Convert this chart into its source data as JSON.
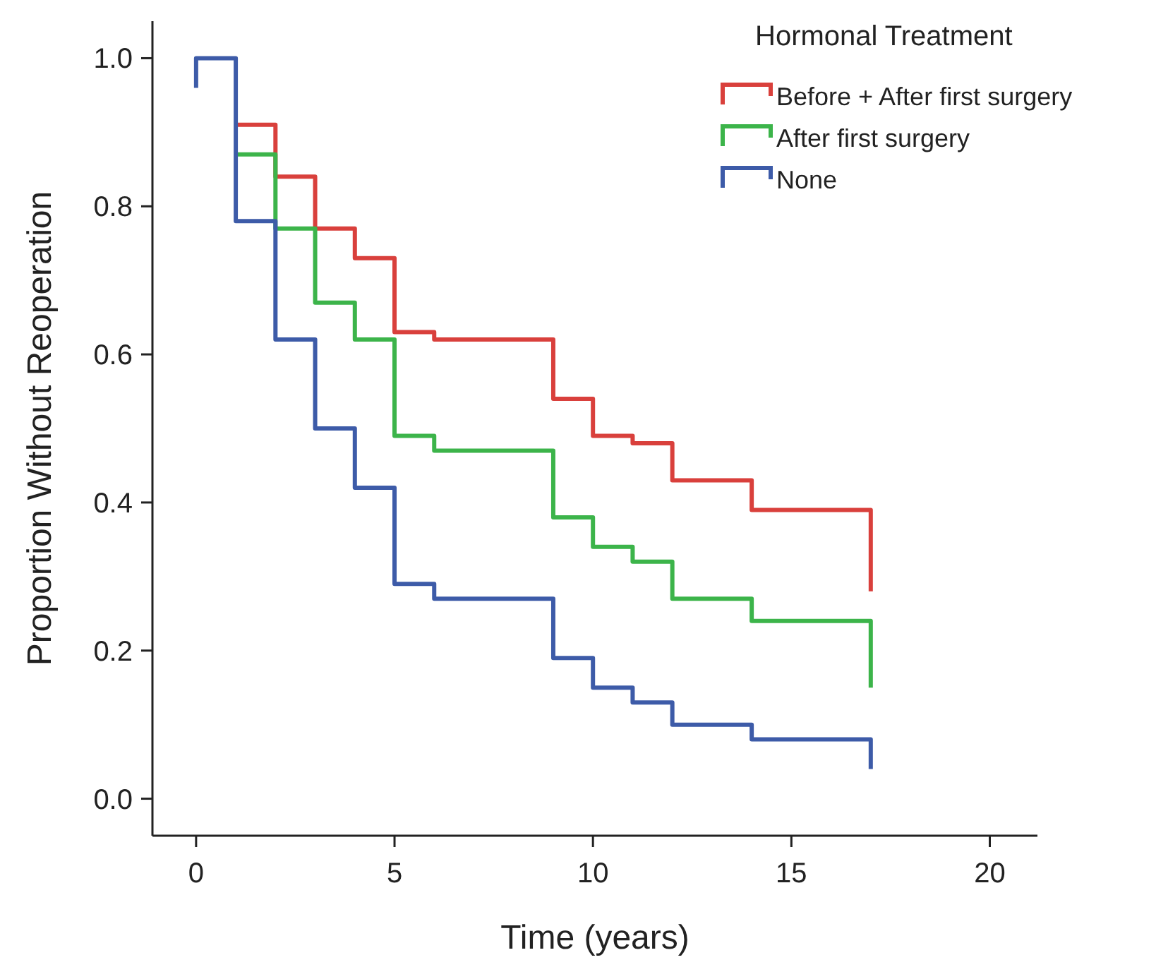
{
  "chart_data": {
    "type": "step",
    "xlabel": "Time (years)",
    "ylabel": "Proportion Without Reoperation",
    "legend_title": "Hormonal Treatment",
    "legend": "top right",
    "grid": false,
    "xlim": [
      -1.1,
      21.2
    ],
    "xticks": [
      0,
      5,
      10,
      15,
      20
    ],
    "ylim": [
      -0.05,
      1.05
    ],
    "yticks": [
      {
        "value": 0,
        "label": "0.0"
      },
      {
        "value": 0.2,
        "label": "0.2"
      },
      {
        "value": 0.4,
        "label": "0.4"
      },
      {
        "value": 0.6,
        "label": "0.6"
      },
      {
        "value": 0.8,
        "label": "0.8"
      },
      {
        "value": 1,
        "label": "1.0"
      }
    ],
    "series": [
      {
        "name": "Before + After first surgery",
        "color": "#d9403c",
        "x": [
          1,
          2,
          3,
          4,
          5,
          6,
          9,
          10,
          11,
          12,
          14,
          17
        ],
        "values": [
          0.91,
          0.84,
          0.77,
          0.73,
          0.63,
          0.62,
          0.54,
          0.49,
          0.48,
          0.43,
          0.39,
          0.28
        ]
      },
      {
        "name": "After first surgery",
        "color": "#3cb44a",
        "x": [
          1,
          2,
          3,
          4,
          5,
          6,
          9,
          10,
          11,
          12,
          14,
          17
        ],
        "values": [
          0.87,
          0.77,
          0.67,
          0.62,
          0.49,
          0.47,
          0.38,
          0.34,
          0.32,
          0.27,
          0.24,
          0.15
        ]
      },
      {
        "name": "None",
        "color": "#3d5ba8",
        "x": [
          0,
          0,
          1,
          2,
          3,
          4,
          5,
          6,
          9,
          10,
          11,
          12,
          14,
          17
        ],
        "values": [
          0.96,
          1,
          0.78,
          0.62,
          0.5,
          0.42,
          0.29,
          0.27,
          0.19,
          0.15,
          0.13,
          0.1,
          0.08,
          0.04
        ]
      }
    ]
  }
}
